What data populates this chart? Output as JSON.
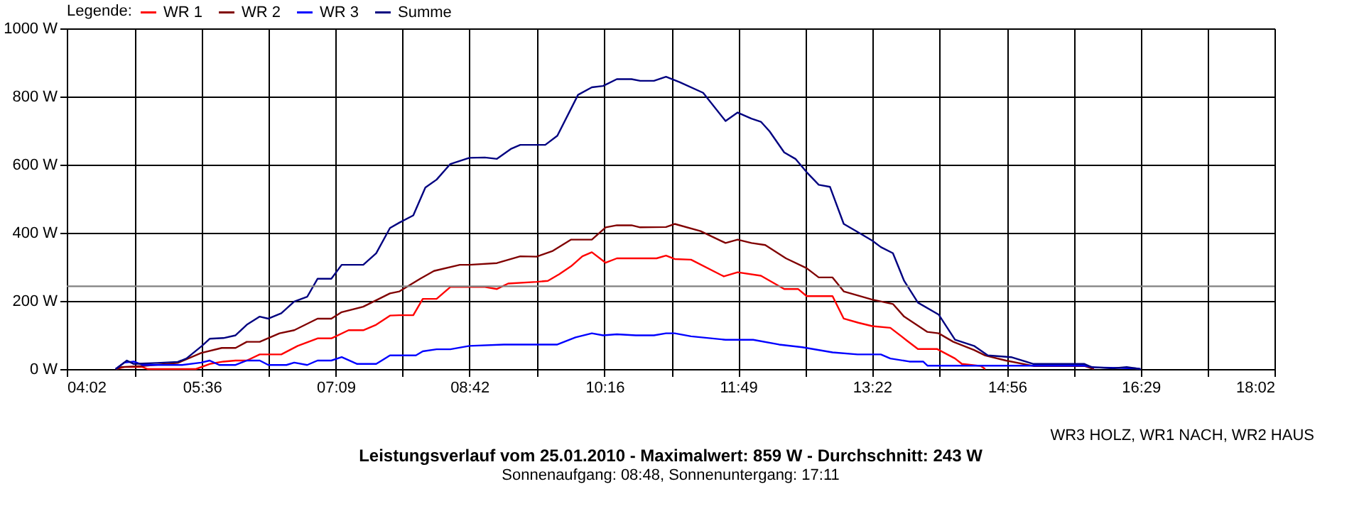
{
  "chart_data": {
    "type": "line",
    "title": "Leistungsverlauf vom 25.01.2010 - Maximalwert: 859 W - Durchschnitt: 243 W",
    "subtitle": "Sonnenaufgang: 08:48, Sonnenuntergang: 17:11",
    "annotations": [
      "WR3 HOLZ, WR1 NACH, WR2 HAUS"
    ],
    "legend_title": "Legende:",
    "legend": "top left",
    "grid": true,
    "marker": "none",
    "line_style": "solid",
    "xlim": [
      4.0333,
      18.0333
    ],
    "xticks": [
      {
        "value": 4.0333,
        "label": "04:02"
      },
      {
        "value": 4.8167,
        "label": null
      },
      {
        "value": 5.6,
        "label": "05:36"
      },
      {
        "value": 6.375,
        "label": null
      },
      {
        "value": 7.15,
        "label": "07:09"
      },
      {
        "value": 7.925,
        "label": null
      },
      {
        "value": 8.7,
        "label": "08:42"
      },
      {
        "value": 9.4833,
        "label": null
      },
      {
        "value": 10.2667,
        "label": "10:16"
      },
      {
        "value": 11.0417,
        "label": null
      },
      {
        "value": 11.8167,
        "label": "11:49"
      },
      {
        "value": 12.5917,
        "label": null
      },
      {
        "value": 13.3667,
        "label": "13:22"
      },
      {
        "value": 14.15,
        "label": null
      },
      {
        "value": 14.9333,
        "label": "14:56"
      },
      {
        "value": 15.7083,
        "label": null
      },
      {
        "value": 16.4833,
        "label": "16:29"
      },
      {
        "value": 17.2583,
        "label": null
      },
      {
        "value": 18.0333,
        "label": "18:02"
      }
    ],
    "ylim": [
      0,
      1000
    ],
    "yticks": [
      {
        "value": 0,
        "label": "0 W"
      },
      {
        "value": 200,
        "label": "200 W"
      },
      {
        "value": 400,
        "label": "400 W"
      },
      {
        "value": 600,
        "label": "600 W"
      },
      {
        "value": 800,
        "label": "800 W"
      },
      {
        "value": 1000,
        "label": "1000 W"
      }
    ],
    "ref_lines": [
      {
        "axis": "y",
        "value": 243,
        "color": "#808080"
      }
    ],
    "series": [
      {
        "name": "WR 1",
        "color": "#ff0000",
        "x": [
          4.6,
          4.7,
          4.91,
          4.97,
          5.53,
          5.69,
          5.85,
          5.99,
          6.12,
          6.27,
          6.52,
          6.71,
          6.94,
          7.1,
          7.3,
          7.47,
          7.62,
          7.78,
          7.89,
          8.05,
          8.16,
          8.32,
          8.48,
          8.88,
          9.02,
          9.15,
          9.48,
          9.61,
          9.74,
          9.88,
          10.01,
          10.12,
          10.28,
          10.41,
          10.87,
          10.98,
          11.08,
          11.27,
          11.65,
          11.81,
          12.08,
          12.35,
          12.51,
          12.61,
          12.91,
          13.04,
          13.21,
          13.37,
          13.58,
          13.77,
          13.9,
          14.12,
          14.33,
          14.41,
          14.63,
          14.68
        ],
        "values": [
          0,
          6,
          6,
          0,
          0,
          15,
          22,
          25,
          25,
          43,
          43,
          68,
          90,
          90,
          114,
          114,
          130,
          157,
          158,
          158,
          206,
          206,
          241,
          241,
          235,
          251,
          256,
          259,
          278,
          302,
          331,
          343,
          312,
          325,
          325,
          333,
          323,
          321,
          272,
          284,
          274,
          235,
          235,
          214,
          214,
          148,
          136,
          126,
          121,
          84,
          59,
          59,
          31,
          15,
          9,
          0
        ]
      },
      {
        "name": "WR 2",
        "color": "#800000",
        "x": [
          4.6,
          4.67,
          4.91,
          5.32,
          5.59,
          5.83,
          5.99,
          6.12,
          6.27,
          6.5,
          6.67,
          6.94,
          7.1,
          7.22,
          7.47,
          7.78,
          7.89,
          8.13,
          8.29,
          8.59,
          8.7,
          9.02,
          9.29,
          9.48,
          9.66,
          9.88,
          10.12,
          10.28,
          10.41,
          10.58,
          10.68,
          10.98,
          11.08,
          11.38,
          11.67,
          11.81,
          11.97,
          12.13,
          12.37,
          12.61,
          12.75,
          12.91,
          13.04,
          13.37,
          13.61,
          13.74,
          14.01,
          14.14,
          14.31,
          14.55,
          14.68,
          14.92,
          15.24,
          15.83,
          15.94
        ],
        "values": [
          0,
          6,
          9,
          18,
          47,
          62,
          62,
          80,
          80,
          105,
          114,
          148,
          148,
          167,
          183,
          222,
          228,
          265,
          288,
          306,
          306,
          311,
          331,
          330,
          346,
          380,
          380,
          416,
          422,
          422,
          416,
          417,
          426,
          405,
          370,
          380,
          370,
          364,
          325,
          296,
          269,
          269,
          228,
          204,
          191,
          154,
          109,
          105,
          80,
          56,
          40,
          25,
          9,
          9,
          0
        ]
      },
      {
        "name": "WR 3",
        "color": "#0000ff",
        "x": [
          4.6,
          4.7,
          4.81,
          4.91,
          5.37,
          5.59,
          5.69,
          5.8,
          5.99,
          6.12,
          6.27,
          6.37,
          6.58,
          6.67,
          6.82,
          6.94,
          7.1,
          7.22,
          7.4,
          7.62,
          7.78,
          8.08,
          8.16,
          8.32,
          8.48,
          8.7,
          9.1,
          9.72,
          9.93,
          10.12,
          10.25,
          10.41,
          10.63,
          10.84,
          10.98,
          11.08,
          11.27,
          11.67,
          11.99,
          12.29,
          12.56,
          12.91,
          13.2,
          13.47,
          13.58,
          13.8,
          13.96,
          14.01,
          15.83,
          15.94,
          16.42,
          16.48
        ],
        "values": [
          0,
          19,
          22,
          12,
          12,
          19,
          25,
          12,
          12,
          25,
          25,
          12,
          12,
          19,
          12,
          25,
          25,
          35,
          15,
          15,
          40,
          40,
          52,
          58,
          58,
          68,
          72,
          72,
          93,
          105,
          99,
          102,
          99,
          99,
          105,
          105,
          96,
          86,
          86,
          72,
          64,
          49,
          43,
          43,
          31,
          22,
          22,
          10,
          10,
          5,
          2,
          0
        ]
      },
      {
        "name": "Summe",
        "color": "#000080",
        "x": [
          4.6,
          4.73,
          4.81,
          4.91,
          5.08,
          5.32,
          5.42,
          5.6,
          5.69,
          5.85,
          5.99,
          6.12,
          6.27,
          6.37,
          6.52,
          6.67,
          6.82,
          6.94,
          7.1,
          7.22,
          7.47,
          7.62,
          7.78,
          7.89,
          8.05,
          8.19,
          8.32,
          8.48,
          8.7,
          8.88,
          9.02,
          9.18,
          9.29,
          9.58,
          9.72,
          9.96,
          10.12,
          10.25,
          10.41,
          10.58,
          10.68,
          10.84,
          10.98,
          11.14,
          11.41,
          11.67,
          11.81,
          11.97,
          12.08,
          12.18,
          12.35,
          12.48,
          12.61,
          12.75,
          12.88,
          13.04,
          13.21,
          13.37,
          13.47,
          13.61,
          13.74,
          13.9,
          14.14,
          14.33,
          14.55,
          14.71,
          14.98,
          15.24,
          15.83,
          15.91,
          16.16,
          16.32,
          16.48
        ],
        "values": [
          0,
          25,
          15,
          16,
          18,
          21,
          31,
          68,
          89,
          91,
          99,
          130,
          154,
          148,
          164,
          198,
          212,
          265,
          265,
          306,
          306,
          340,
          414,
          430,
          451,
          533,
          556,
          602,
          620,
          621,
          617,
          646,
          658,
          658,
          685,
          805,
          827,
          831,
          851,
          851,
          846,
          846,
          858,
          842,
          811,
          728,
          753,
          735,
          726,
          698,
          636,
          617,
          578,
          541,
          535,
          426,
          401,
          377,
          358,
          340,
          259,
          195,
          160,
          86,
          68,
          40,
          35,
          15,
          15,
          6,
          2,
          6,
          0
        ]
      }
    ]
  }
}
